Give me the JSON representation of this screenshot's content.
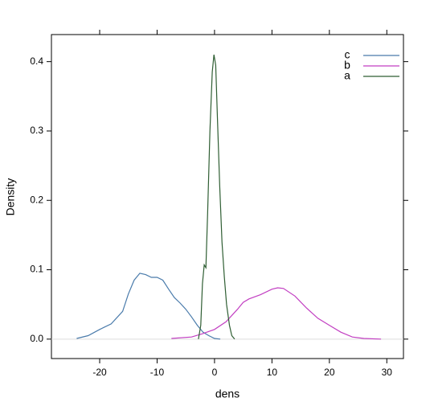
{
  "chart_data": {
    "type": "line",
    "xlabel": "dens",
    "ylabel": "Density",
    "xlim": [
      -28.4,
      32.9
    ],
    "ylim": [
      -0.028,
      0.439
    ],
    "xticks": [
      -20,
      -10,
      0,
      10,
      20,
      30
    ],
    "yticks": [
      {
        "value": 0,
        "label": "0.0"
      },
      {
        "value": 0.1,
        "label": "0.1"
      },
      {
        "value": 0.2,
        "label": "0.2"
      },
      {
        "value": 0.3,
        "label": "0.3"
      },
      {
        "value": 0.4,
        "label": "0.4"
      }
    ],
    "series": [
      {
        "name": "c",
        "color": "#4a7bab",
        "x": [
          -24,
          -22,
          -20,
          -18,
          -16,
          -15,
          -14,
          -13,
          -12,
          -11,
          -10,
          -9,
          -8,
          -7,
          -6,
          -5,
          -4,
          -3,
          -2,
          -1,
          0,
          1
        ],
        "values": [
          0.001,
          0.005,
          0.014,
          0.022,
          0.04,
          0.065,
          0.085,
          0.095,
          0.093,
          0.089,
          0.089,
          0.085,
          0.072,
          0.06,
          0.052,
          0.043,
          0.032,
          0.02,
          0.01,
          0.005,
          0.001,
          0
        ]
      },
      {
        "name": "b",
        "color": "#c23fc2",
        "x": [
          -7.5,
          -4,
          -2,
          0,
          2,
          4,
          5,
          6,
          8,
          10,
          11,
          12,
          14,
          16,
          18,
          20,
          22,
          24,
          26,
          29
        ],
        "values": [
          0.001,
          0.003,
          0.008,
          0.014,
          0.025,
          0.043,
          0.053,
          0.058,
          0.064,
          0.072,
          0.074,
          0.073,
          0.062,
          0.045,
          0.03,
          0.02,
          0.01,
          0.003,
          0.001,
          0
        ]
      },
      {
        "name": "a",
        "color": "#2f5e33",
        "x": [
          -2.8,
          -2.4,
          -2.1,
          -1.8,
          -1.5,
          -1.2,
          -0.8,
          -0.4,
          -0.1,
          0.2,
          0.5,
          0.9,
          1.3,
          1.7,
          2.1,
          2.6,
          3.0,
          3.5
        ],
        "values": [
          0,
          0.02,
          0.08,
          0.107,
          0.103,
          0.18,
          0.3,
          0.385,
          0.41,
          0.395,
          0.32,
          0.22,
          0.14,
          0.09,
          0.05,
          0.02,
          0.005,
          0
        ]
      }
    ]
  }
}
